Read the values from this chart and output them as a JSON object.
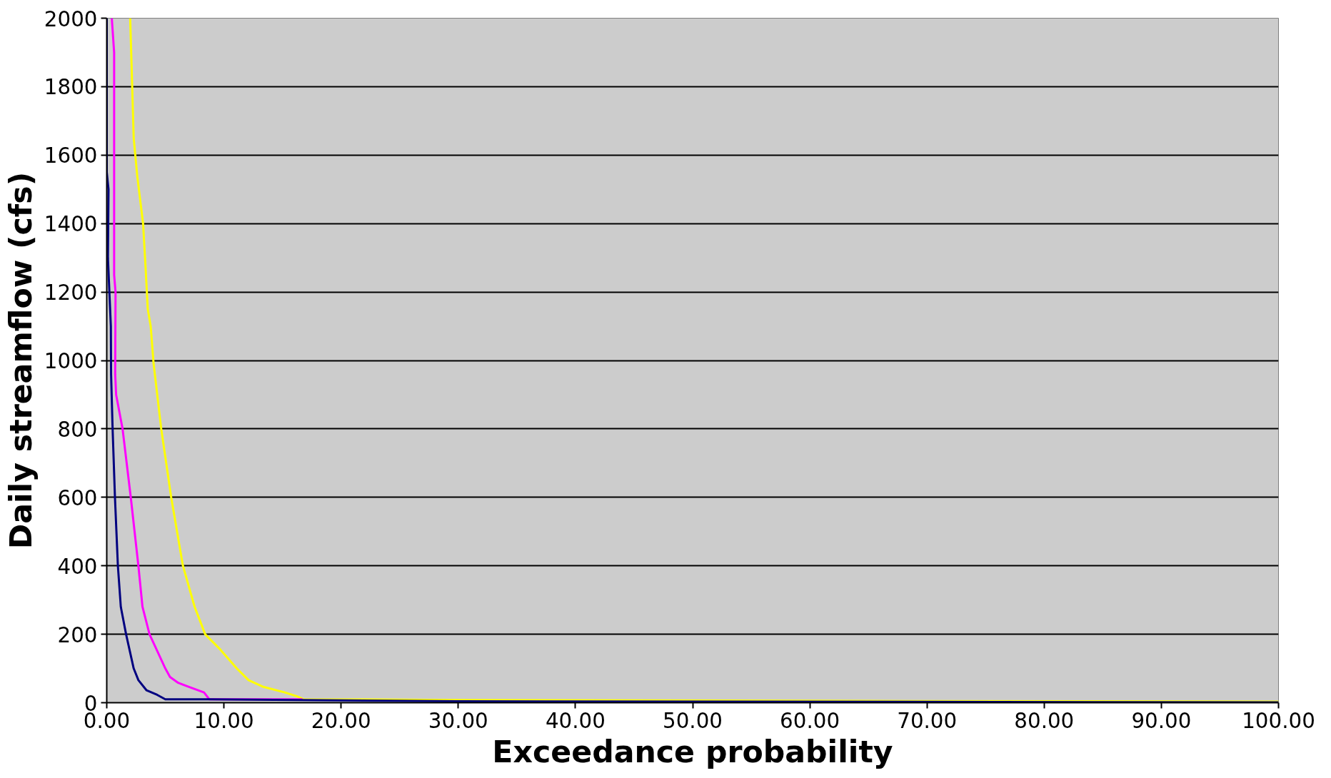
{
  "chart_data": {
    "type": "line",
    "xlabel": "Exceedance probability",
    "ylabel": "Daily streamflow (cfs)",
    "xlim": [
      0,
      100
    ],
    "ylim": [
      0,
      2000
    ],
    "xticks": [
      {
        "value": 0,
        "label": "0.00"
      },
      {
        "value": 10,
        "label": "10.00"
      },
      {
        "value": 20,
        "label": "20.00"
      },
      {
        "value": 30,
        "label": "30.00"
      },
      {
        "value": 40,
        "label": "40.00"
      },
      {
        "value": 50,
        "label": "50.00"
      },
      {
        "value": 60,
        "label": "60.00"
      },
      {
        "value": 70,
        "label": "70.00"
      },
      {
        "value": 80,
        "label": "80.00"
      },
      {
        "value": 90,
        "label": "90.00"
      },
      {
        "value": 100,
        "label": "100.00"
      }
    ],
    "yticks": [
      0,
      200,
      400,
      600,
      800,
      1000,
      1200,
      1400,
      1600,
      1800,
      2000
    ],
    "grid": "y",
    "marker": "none",
    "line_style": "solid",
    "series": [
      {
        "color": "#ffff00",
        "x": [
          2.0,
          2.3,
          2.6,
          3.1,
          3.3,
          3.5,
          3.75,
          4.0,
          4.65,
          5.5,
          6.5,
          7.5,
          8.4,
          9.7,
          11.1,
          12.1,
          13.3,
          15.2,
          16.2,
          16.8,
          30,
          65,
          100
        ],
        "values": [
          2000,
          1650,
          1540,
          1400,
          1280,
          1150,
          1100,
          990,
          800,
          600,
          400,
          280,
          200,
          155,
          100,
          66,
          47,
          30,
          19,
          10,
          8,
          5,
          3
        ]
      },
      {
        "color": "#ff00ff",
        "x": [
          0.43,
          0.63,
          0.63,
          0.75,
          0.72,
          0.8,
          1.35,
          2.05,
          2.7,
          3.05,
          3.65,
          5.0,
          5.4,
          6.1,
          7.1,
          8.3,
          8.75,
          16.7
        ],
        "values": [
          2000,
          1900,
          1250,
          1200,
          960,
          900,
          800,
          600,
          400,
          280,
          200,
          100,
          75,
          58,
          45,
          30,
          10,
          10
        ]
      },
      {
        "color": "#000080",
        "x": [
          0,
          0,
          0.15,
          0.1,
          0.35,
          0.37,
          0.5,
          0.7,
          0.95,
          1.2,
          1.65,
          2.3,
          2.7,
          3.4,
          4.3,
          5.0,
          8.6,
          30,
          100
        ],
        "values": [
          2000,
          1550,
          1500,
          1300,
          1100,
          960,
          800,
          600,
          400,
          280,
          200,
          100,
          66,
          36,
          23,
          10,
          10,
          4,
          1
        ]
      }
    ]
  }
}
